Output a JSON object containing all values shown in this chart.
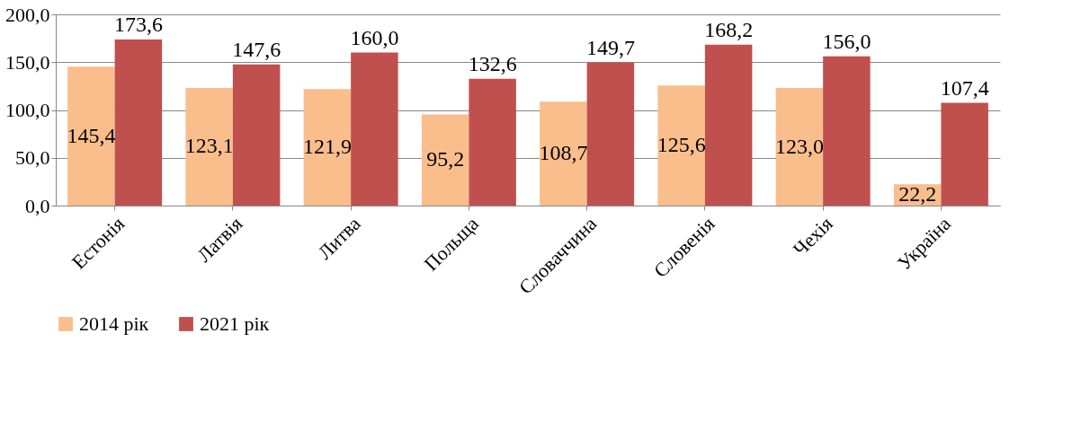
{
  "chart_data": {
    "type": "bar",
    "categories": [
      "Естонія",
      "Латвія",
      "Литва",
      "Польща",
      "Словаччина",
      "Словенія",
      "Чехія",
      "Україна"
    ],
    "series": [
      {
        "name": "2014 рік",
        "color": "#f9be8c",
        "values": [
          145.4,
          123.1,
          121.9,
          95.2,
          108.7,
          125.6,
          123.0,
          22.2
        ],
        "value_labels": [
          "145,4",
          "123,1",
          "121,9",
          "95,2",
          "108,7",
          "125,6",
          "123,0",
          "22,2"
        ]
      },
      {
        "name": "2021 рік",
        "color": "#c0504d",
        "values": [
          173.6,
          147.6,
          160.0,
          132.6,
          149.7,
          168.2,
          156.0,
          107.4
        ],
        "value_labels": [
          "173,6",
          "147,6",
          "160,0",
          "132,6",
          "149,7",
          "168,2",
          "156,0",
          "107,4"
        ]
      }
    ],
    "ylim": [
      0,
      200
    ],
    "yticks": [
      {
        "value": 0,
        "label": "0,0"
      },
      {
        "value": 50,
        "label": "50,0"
      },
      {
        "value": 100,
        "label": "100,0"
      },
      {
        "value": 150,
        "label": "150,0"
      },
      {
        "value": 200,
        "label": "200,0"
      }
    ],
    "grid": "y",
    "legend": "bottom"
  }
}
